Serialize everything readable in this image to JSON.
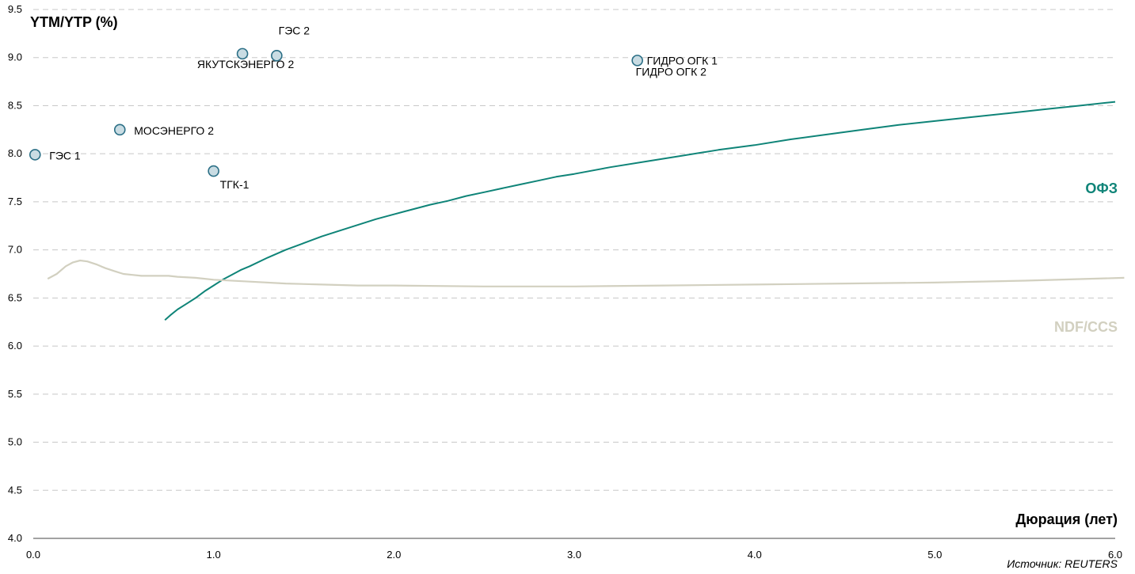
{
  "chart_data": {
    "type": "line",
    "title": "",
    "ylabel": "YTM/YTP (%)",
    "xlabel": "Дюрация (лет)",
    "source": "Источник: REUTERS",
    "xlim": [
      0,
      6
    ],
    "ylim": [
      4.0,
      9.5
    ],
    "x_ticks": [
      "0.0",
      "1.0",
      "2.0",
      "3.0",
      "4.0",
      "5.0",
      "6.0"
    ],
    "y_ticks": [
      "4.0",
      "4.5",
      "5.0",
      "5.5",
      "6.0",
      "6.5",
      "7.0",
      "7.5",
      "8.0",
      "8.5",
      "9.0",
      "9.5"
    ],
    "grid": true,
    "colors": {
      "ofz": "#0f8478",
      "ndf": "#d2d0c0",
      "marker_fill": "#c9dce3",
      "marker_stroke": "#2b6f86",
      "grid": "#c8c8c8"
    },
    "series": [
      {
        "name": "ОФЗ",
        "x": [
          0.73,
          0.76,
          0.8,
          0.85,
          0.9,
          0.95,
          1.0,
          1.05,
          1.1,
          1.15,
          1.2,
          1.3,
          1.4,
          1.5,
          1.6,
          1.7,
          1.8,
          1.9,
          2.0,
          2.1,
          2.2,
          2.3,
          2.4,
          2.5,
          2.6,
          2.7,
          2.8,
          2.9,
          3.0,
          3.2,
          3.4,
          3.6,
          3.8,
          4.0,
          4.2,
          4.4,
          4.6,
          4.8,
          5.0,
          5.2,
          5.4,
          5.6,
          5.8,
          6.0
        ],
        "values": [
          6.27,
          6.32,
          6.38,
          6.44,
          6.5,
          6.57,
          6.63,
          6.69,
          6.74,
          6.79,
          6.83,
          6.92,
          7.0,
          7.07,
          7.14,
          7.2,
          7.26,
          7.32,
          7.37,
          7.42,
          7.47,
          7.51,
          7.56,
          7.6,
          7.64,
          7.68,
          7.72,
          7.76,
          7.79,
          7.86,
          7.92,
          7.98,
          8.04,
          8.09,
          8.15,
          8.2,
          8.25,
          8.3,
          8.34,
          8.38,
          8.42,
          8.46,
          8.5,
          8.54
        ]
      },
      {
        "name": "NDF/CCS",
        "x": [
          0.08,
          0.13,
          0.18,
          0.22,
          0.26,
          0.3,
          0.35,
          0.4,
          0.45,
          0.5,
          0.55,
          0.6,
          0.7,
          0.75,
          0.8,
          0.9,
          1.0,
          1.2,
          1.4,
          1.6,
          1.8,
          2.0,
          2.5,
          3.0,
          3.5,
          4.0,
          4.5,
          5.0,
          5.5,
          6.05
        ],
        "values": [
          6.7,
          6.75,
          6.83,
          6.87,
          6.89,
          6.88,
          6.85,
          6.81,
          6.78,
          6.75,
          6.74,
          6.73,
          6.73,
          6.73,
          6.72,
          6.71,
          6.69,
          6.67,
          6.65,
          6.64,
          6.63,
          6.63,
          6.62,
          6.62,
          6.63,
          6.64,
          6.65,
          6.66,
          6.68,
          6.71
        ]
      }
    ],
    "points": [
      {
        "label": "ГЭС 1",
        "x": 0.01,
        "y": 7.99
      },
      {
        "label": "МОСЭНЕРГО 2",
        "x": 0.48,
        "y": 8.25
      },
      {
        "label": "ТГК-1",
        "x": 1.0,
        "y": 7.82
      },
      {
        "label": "ЯКУТСКЭНЕРГО 2",
        "x": 1.16,
        "y": 9.04
      },
      {
        "label": "ГЭС 2",
        "x": 1.35,
        "y": 9.02
      },
      {
        "label": "ГИДРО ОГК 1",
        "x": 3.35,
        "y": 8.97
      },
      {
        "label": "ГИДРО ОГК 2",
        "x": 3.35,
        "y": 8.97
      }
    ]
  }
}
